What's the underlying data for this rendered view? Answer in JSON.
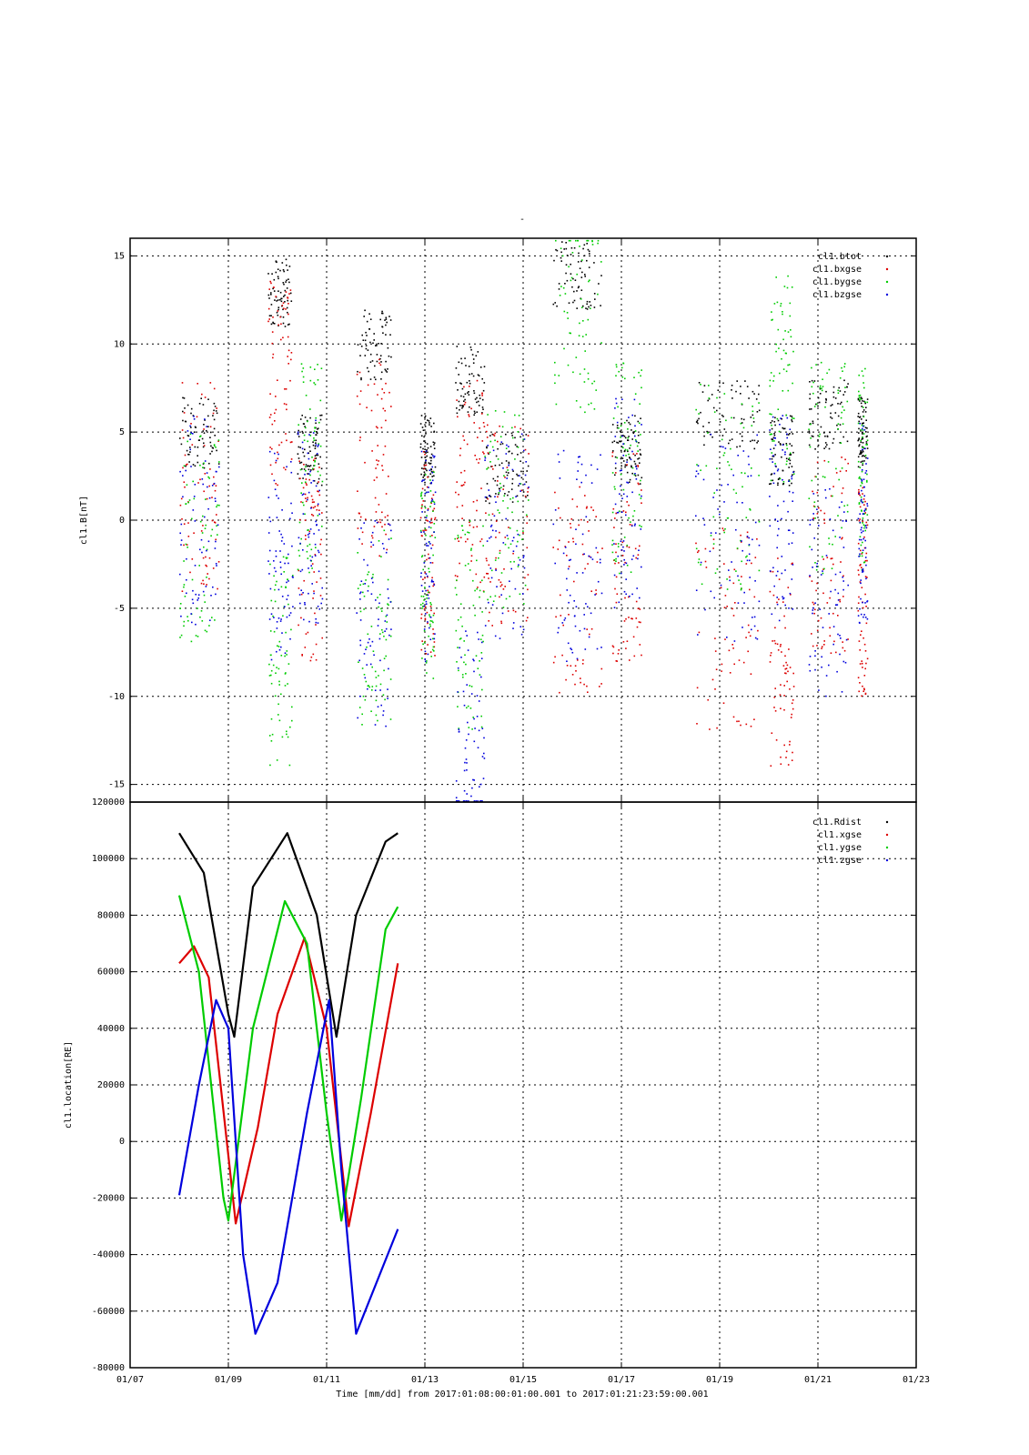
{
  "figure": {
    "top_mark": "-",
    "xlabel": "Time [mm/dd]  from 2017:01:08:00:01:00.001  to  2017:01:21:23:59:00.001"
  },
  "chart_data": [
    {
      "type": "scatter",
      "ylabel": "cl1.B[nT]",
      "ylim": [
        -16,
        16
      ],
      "yticks": [
        15,
        10,
        5,
        0,
        -5,
        -10,
        -15
      ],
      "xlim_days": [
        7,
        23
      ],
      "xticks": [
        "01/07",
        "01/09",
        "01/11",
        "01/13",
        "01/15",
        "01/17",
        "01/19",
        "01/21",
        "01/23"
      ],
      "grid": true,
      "legend_position": "top-right",
      "series": [
        {
          "name": "cl1.btot",
          "color": "#000000"
        },
        {
          "name": "cl1.bxgse",
          "color": "#dd0000"
        },
        {
          "name": "cl1.bygse",
          "color": "#00cc00"
        },
        {
          "name": "cl1.bzgse",
          "color": "#0000dd"
        }
      ]
    },
    {
      "type": "line",
      "ylabel": "cl1.location[RE]",
      "ylim": [
        -80000,
        120000
      ],
      "yticks": [
        120000,
        100000,
        80000,
        60000,
        40000,
        20000,
        0,
        -20000,
        -40000,
        -60000,
        -80000
      ],
      "xlim_days": [
        7,
        23
      ],
      "xticks": [
        "01/07",
        "01/09",
        "01/11",
        "01/13",
        "01/15",
        "01/17",
        "01/19",
        "01/21",
        "01/23"
      ],
      "grid": true,
      "legend_position": "top-right",
      "series": [
        {
          "name": "cl1.Rdist",
          "color": "#000000",
          "x": [
            8.0,
            8.5,
            9.0,
            9.12,
            9.5,
            10.2,
            10.8,
            11.2,
            11.6,
            12.2,
            12.45
          ],
          "y": [
            109000,
            95000,
            45000,
            37000,
            90000,
            109000,
            80000,
            37000,
            80000,
            106000,
            109000
          ]
        },
        {
          "name": "cl1.xgse",
          "color": "#dd0000",
          "x": [
            8.0,
            8.3,
            8.6,
            9.0,
            9.15,
            9.6,
            10.0,
            10.55,
            11.0,
            11.45,
            11.9,
            12.45
          ],
          "y": [
            63000,
            69000,
            58000,
            -5000,
            -29000,
            5000,
            45000,
            72000,
            40000,
            -30000,
            10000,
            63000
          ]
        },
        {
          "name": "cl1.ygse",
          "color": "#00cc00",
          "x": [
            8.0,
            8.4,
            8.9,
            9.0,
            9.5,
            10.15,
            10.6,
            11.0,
            11.3,
            11.7,
            12.2,
            12.45
          ],
          "y": [
            87000,
            60000,
            -20000,
            -28000,
            40000,
            85000,
            70000,
            10000,
            -28000,
            15000,
            75000,
            83000
          ]
        },
        {
          "name": "cl1.zgse",
          "color": "#0000dd",
          "x": [
            8.0,
            8.4,
            8.75,
            9.0,
            9.3,
            9.55,
            10.0,
            10.6,
            11.05,
            11.3,
            11.6,
            12.45
          ],
          "y": [
            -19000,
            20000,
            50000,
            40000,
            -40000,
            -68000,
            -50000,
            10000,
            50000,
            -10000,
            -68000,
            -31000
          ]
        }
      ]
    }
  ]
}
